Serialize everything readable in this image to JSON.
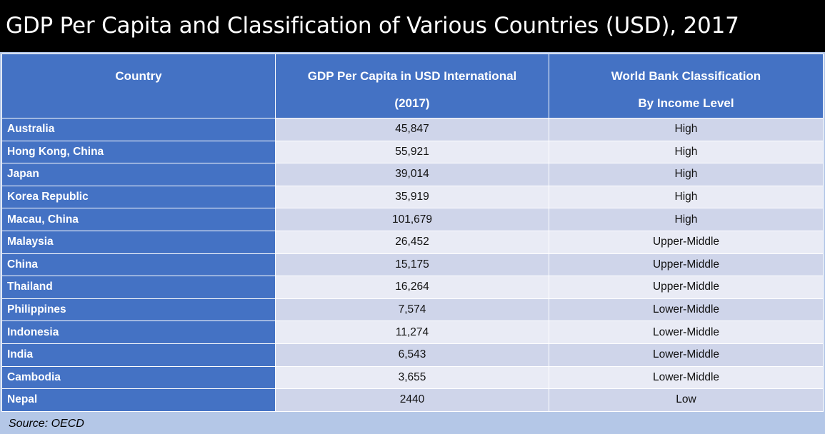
{
  "title": "GDP Per Capita and Classification of Various Countries (USD), 2017",
  "table": {
    "headers": {
      "country": "Country",
      "gdp_line1": "GDP Per Capita in USD International",
      "gdp_line2": "(2017)",
      "class_line1": "World Bank Classification",
      "class_line2": "By Income Level"
    },
    "rows": [
      {
        "country": "Australia",
        "gdp": "45,847",
        "classification": "High"
      },
      {
        "country": "Hong Kong, China",
        "gdp": "55,921",
        "classification": "High"
      },
      {
        "country": "Japan",
        "gdp": "39,014",
        "classification": "High"
      },
      {
        "country": "Korea Republic",
        "gdp": "35,919",
        "classification": "High"
      },
      {
        "country": "Macau, China",
        "gdp": "101,679",
        "classification": "High"
      },
      {
        "country": "Malaysia",
        "gdp": "26,452",
        "classification": "Upper-Middle"
      },
      {
        "country": "China",
        "gdp": "15,175",
        "classification": "Upper-Middle"
      },
      {
        "country": "Thailand",
        "gdp": "16,264",
        "classification": "Upper-Middle"
      },
      {
        "country": "Philippines",
        "gdp": "7,574",
        "classification": "Lower-Middle"
      },
      {
        "country": "Indonesia",
        "gdp": "11,274",
        "classification": "Lower-Middle"
      },
      {
        "country": "India",
        "gdp": "6,543",
        "classification": "Lower-Middle"
      },
      {
        "country": "Cambodia",
        "gdp": "3,655",
        "classification": "Lower-Middle"
      },
      {
        "country": "Nepal",
        "gdp": "2440",
        "classification": "Low"
      }
    ]
  },
  "source": "Source: OECD",
  "colors": {
    "title_background": "#000000",
    "header_background": "#4472c4",
    "row_band_dark": "#cfd5ea",
    "row_band_light": "#e9ebf5",
    "footer_background": "#b4c7e7"
  }
}
